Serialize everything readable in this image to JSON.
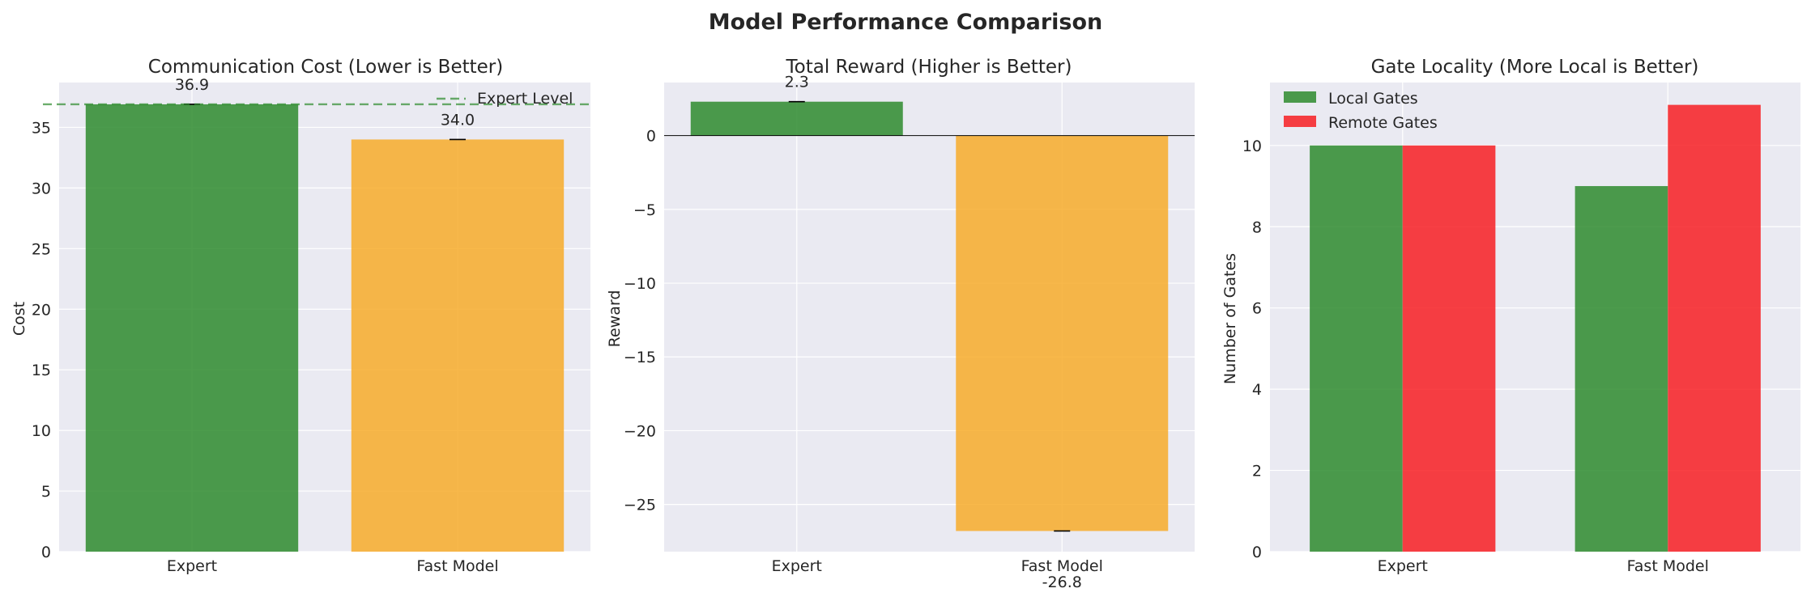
{
  "figure": {
    "title": "Model Performance Comparison"
  },
  "colors": {
    "green": "#2e8b2e",
    "orange": "#f7ab2a",
    "red": "#f71e23",
    "panel_bg": "#eaeaf2",
    "grid": "#ffffff",
    "text": "#262626"
  },
  "chart_data": [
    {
      "type": "bar",
      "title": "Communication Cost (Lower is Better)",
      "xlabel": "",
      "ylabel": "Cost",
      "categories": [
        "Expert",
        "Fast Model"
      ],
      "values": [
        36.9,
        34.0
      ],
      "data_labels": [
        "36.9",
        "34.0"
      ],
      "bar_colors": [
        "#2e8b2e",
        "#f7ab2a"
      ],
      "ylim": [
        0,
        38.7
      ],
      "yticks": [
        0,
        5,
        10,
        15,
        20,
        25,
        30,
        35
      ],
      "reference_line": {
        "value": 36.9,
        "label": "Expert Level",
        "style": "dashed",
        "color": "#2e8b2e"
      },
      "legend": "top-right",
      "grid": true
    },
    {
      "type": "bar",
      "title": "Total Reward (Higher is Better)",
      "xlabel": "",
      "ylabel": "Reward",
      "categories": [
        "Expert",
        "Fast Model"
      ],
      "values": [
        2.3,
        -26.8
      ],
      "data_labels": [
        "2.3",
        "-26.8"
      ],
      "bar_colors": [
        "#2e8b2e",
        "#f7ab2a"
      ],
      "ylim": [
        -28.2,
        3.6
      ],
      "yticks": [
        0,
        -5,
        -10,
        -15,
        -20,
        -25
      ],
      "ytick_labels": [
        "0",
        "−5",
        "−10",
        "−15",
        "−20",
        "−25"
      ],
      "zero_line": true,
      "grid": true
    },
    {
      "type": "bar",
      "title": "Gate Locality (More Local is Better)",
      "xlabel": "",
      "ylabel": "Number of Gates",
      "categories": [
        "Expert",
        "Fast Model"
      ],
      "series": [
        {
          "name": "Local Gates",
          "values": [
            10,
            9
          ],
          "color": "#2e8b2e"
        },
        {
          "name": "Remote Gates",
          "values": [
            10,
            11
          ],
          "color": "#f71e23"
        }
      ],
      "ylim": [
        0,
        11.55
      ],
      "yticks": [
        0,
        2,
        4,
        6,
        8,
        10
      ],
      "legend": "top-left",
      "grid": true
    }
  ]
}
